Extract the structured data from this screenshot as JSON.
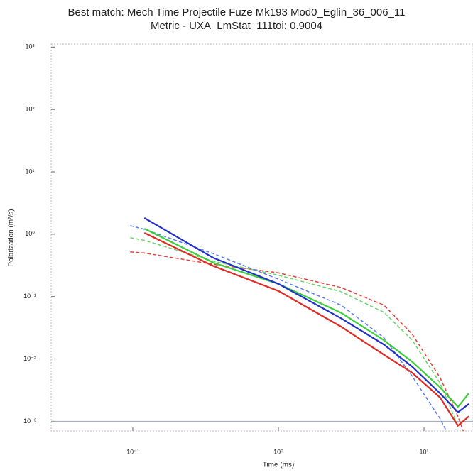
{
  "chart_data": {
    "type": "line",
    "title": "Best match: Mech Time Projectile Fuze Mk193 Mod0_Eglin_36_006_11",
    "subtitle": "Metric - UXA_LmStat_111toi: 0.9004",
    "xlabel": "Time (ms)",
    "ylabel": "Polarization (m²/s)",
    "log_x": true,
    "log_y": true,
    "xlim": [
      0.0275,
      21.7
    ],
    "ylim": [
      0.0007,
      1120
    ],
    "xticks": [
      {
        "value": 0.1,
        "label": "10⁻¹"
      },
      {
        "value": 1,
        "label": "10⁰"
      },
      {
        "value": 10,
        "label": "10¹"
      }
    ],
    "yticks": [
      {
        "value": 0.001,
        "label": "10⁻³"
      },
      {
        "value": 0.01,
        "label": "10⁻²"
      },
      {
        "value": 0.1,
        "label": "10⁻¹"
      },
      {
        "value": 1,
        "label": "10⁰"
      },
      {
        "value": 10,
        "label": "10¹"
      },
      {
        "value": 100,
        "label": "10²"
      },
      {
        "value": 1000,
        "label": "10³"
      }
    ],
    "reference_line": 0.001,
    "x": [
      0.096,
      0.12,
      0.356,
      1,
      2.69,
      5.3,
      8.3,
      12.9,
      17.1,
      20.3
    ],
    "series": [
      {
        "color": "#e8413a",
        "dashed": true,
        "values": [
          0.52,
          0.5,
          0.33,
          0.24,
          0.14,
          0.073,
          0.025,
          0.005,
          0.0012,
          0.0004
        ]
      },
      {
        "color": "#6ad86a",
        "dashed": true,
        "values": [
          0.88,
          0.8,
          0.37,
          0.22,
          0.12,
          0.056,
          0.02,
          0.0041,
          0.00085,
          null
        ]
      },
      {
        "color": "#5a7cf0",
        "dashed": true,
        "values": [
          1.37,
          1.2,
          0.49,
          0.19,
          0.073,
          0.022,
          0.0053,
          0.0011,
          0.0003,
          null
        ]
      },
      {
        "color": "#e02a22",
        "dashed": false,
        "values": [
          null,
          1.05,
          0.31,
          0.123,
          0.033,
          0.0117,
          0.006,
          0.0024,
          0.00085,
          0.0012
        ]
      },
      {
        "color": "#3ccf3c",
        "dashed": false,
        "values": [
          null,
          1.23,
          0.35,
          0.16,
          0.055,
          0.02,
          0.009,
          0.0035,
          0.0017,
          0.0028
        ]
      },
      {
        "color": "#2030c8",
        "dashed": false,
        "values": [
          null,
          1.82,
          0.42,
          0.16,
          0.045,
          0.017,
          0.0075,
          0.0028,
          0.0014,
          0.0019
        ]
      }
    ]
  }
}
